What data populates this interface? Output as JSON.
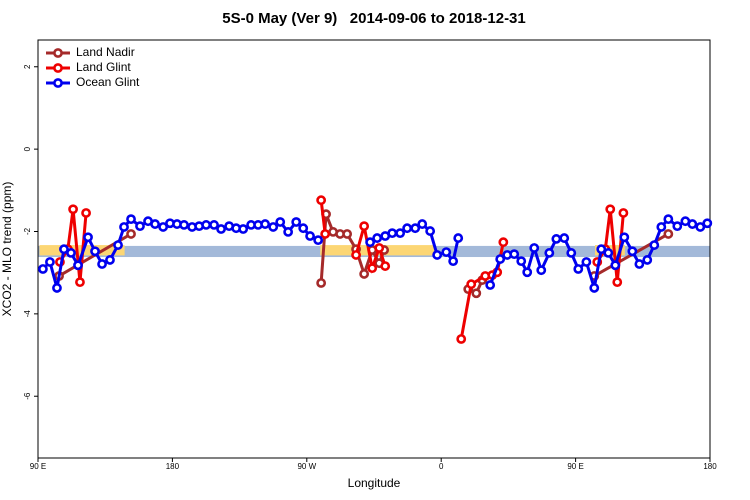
{
  "chart_data": {
    "type": "line",
    "title": "5S-0 May (Ver 9)   2014-09-06 to 2018-12-31",
    "x_label": "Longitude",
    "y_label": "XCO2 - MLO trend (ppm)",
    "xlim": [
      90,
      540
    ],
    "xticks": [
      {
        "value": 90,
        "label": "90 E"
      },
      {
        "value": 180,
        "label": "180"
      },
      {
        "value": 270,
        "label": "90 W"
      },
      {
        "value": 360,
        "label": "0"
      },
      {
        "value": 450,
        "label": "90 E"
      },
      {
        "value": 540,
        "label": "180"
      }
    ],
    "ylim": [
      -7.5,
      2.65
    ],
    "yticks": [
      -6,
      -4,
      -2,
      0,
      2
    ],
    "legend": "top-left",
    "bands": [
      {
        "color": "#a3b9d9",
        "x": [
          90,
          540
        ],
        "y": [
          -2.62,
          -2.35
        ]
      },
      {
        "color": "#fcd674",
        "x": [
          91,
          148
        ],
        "y": [
          -2.58,
          -2.33
        ]
      },
      {
        "color": "#fcd674",
        "x": [
          279,
          356
        ],
        "y": [
          -2.58,
          -2.33
        ]
      },
      {
        "color": "#fcd674",
        "x": [
          463,
          483
        ],
        "y": [
          -2.58,
          -2.33
        ]
      }
    ],
    "series": [
      {
        "name": "Land Nadir",
        "color": "#a52a2a",
        "x": [
          104.1,
          152.3,
          null,
          279.6,
          282.9,
          287.6,
          292.3,
          297,
          303,
          308.4,
          313.8,
          318.5,
          321.8,
          null,
          378.1,
          383.5,
          387.5,
          null,
          462.5,
          512.1
        ],
        "values": [
          -3.08,
          -2.06,
          null,
          -3.25,
          -1.58,
          -2.01,
          -2.06,
          -2.06,
          -2.43,
          -3.03,
          -2.45,
          -2.77,
          -2.45,
          null,
          -3.4,
          -3.5,
          -3.18,
          null,
          -3.08,
          -2.06
        ]
      },
      {
        "name": "Land Glint",
        "color": "#ee0000",
        "x": [
          104.7,
          110,
          113.5,
          118.1,
          122.2,
          null,
          279.6,
          282.3,
          null,
          303,
          308.4,
          313.8,
          318.5,
          322.5,
          null,
          373.4,
          380.1,
          389.5,
          394.2,
          397.5,
          401.6,
          null,
          464.5,
          469.9,
          473.2,
          477.9,
          482
        ],
        "values": [
          -2.74,
          -2.43,
          -1.46,
          -3.23,
          -1.55,
          null,
          -1.24,
          -2.06,
          null,
          -2.57,
          -1.87,
          -2.89,
          -2.4,
          -2.84,
          null,
          -4.61,
          -3.28,
          -3.08,
          -3.06,
          -2.99,
          -2.26,
          null,
          -2.74,
          -2.43,
          -1.46,
          -3.23,
          -1.55
        ]
      },
      {
        "name": "Ocean Glint",
        "color": "#0000ee",
        "x": [
          93.3,
          98,
          102.7,
          107.4,
          112.1,
          116.8,
          123.5,
          128.2,
          132.9,
          138.2,
          143.6,
          147.6,
          152.3,
          158.3,
          163.7,
          168.4,
          173.8,
          178.4,
          183.1,
          187.8,
          193.2,
          197.9,
          202.6,
          207.9,
          212.6,
          218,
          222.7,
          227.4,
          232.7,
          237.4,
          242.1,
          247.5,
          252.2,
          257.5,
          262.9,
          267.6,
          272.2,
          277.6,
          null,
          312.4,
          317.1,
          322.5,
          327.2,
          332.5,
          337.2,
          342.6,
          347.3,
          352.6,
          357.3,
          363.4,
          368,
          371.4,
          null,
          392.8,
          399.5,
          404.2,
          408.9,
          413.6,
          417.6,
          422.3,
          427,
          432.4,
          437.1,
          442.4,
          447.1,
          451.8,
          457.2,
          462.5,
          467.2,
          471.9,
          476.6,
          482.6,
          488,
          492.7,
          498,
          502.7,
          507.4,
          512.1,
          518.1,
          523.5,
          528.2,
          533.5,
          538.2
        ],
        "values": [
          -2.91,
          -2.74,
          -3.37,
          -2.43,
          -2.52,
          -2.82,
          -2.14,
          -2.48,
          -2.79,
          -2.69,
          -2.33,
          -1.89,
          -1.7,
          -1.87,
          -1.75,
          -1.82,
          -1.89,
          -1.8,
          -1.82,
          -1.84,
          -1.89,
          -1.87,
          -1.84,
          -1.84,
          -1.94,
          -1.87,
          -1.92,
          -1.94,
          -1.84,
          -1.84,
          -1.82,
          -1.89,
          -1.77,
          -2.01,
          -1.77,
          -1.92,
          -2.11,
          -2.21,
          null,
          -2.26,
          -2.16,
          -2.11,
          -2.04,
          -2.04,
          -1.92,
          -1.92,
          -1.82,
          -1.99,
          -2.57,
          -2.5,
          -2.72,
          -2.16,
          null,
          -3.3,
          -2.67,
          -2.57,
          -2.55,
          -2.72,
          -2.99,
          -2.4,
          -2.94,
          -2.52,
          -2.18,
          -2.16,
          -2.52,
          -2.91,
          -2.74,
          -3.37,
          -2.43,
          -2.52,
          -2.82,
          -2.14,
          -2.48,
          -2.79,
          -2.69,
          -2.33,
          -1.89,
          -1.7,
          -1.87,
          -1.75,
          -1.82,
          -1.89,
          -1.8
        ]
      }
    ]
  }
}
